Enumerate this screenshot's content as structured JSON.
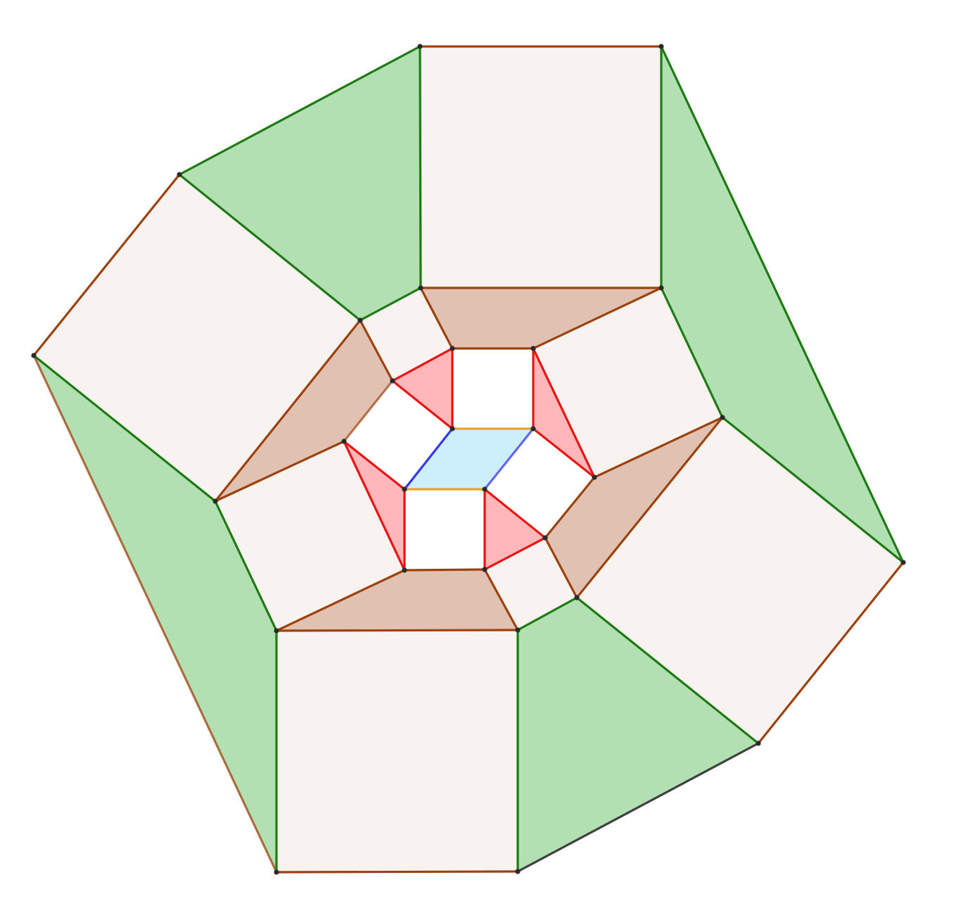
{
  "colors": {
    "background": "#ffffff",
    "green_fill": "#b3e0b3",
    "green_stroke": "#1e7a12",
    "square_fill": "#f8f3f1",
    "brown_stroke": "#9c420c",
    "brown_fill": "#e0c1b2",
    "red_fill": "#ffb3b6",
    "red_stroke": "#e81414",
    "center_fill": "#cdeefb",
    "blue_stroke": "#3535f0",
    "orange_stroke": "#e8a030",
    "dark_stroke": "#404040",
    "vertex": "#2a2a2a"
  }
}
